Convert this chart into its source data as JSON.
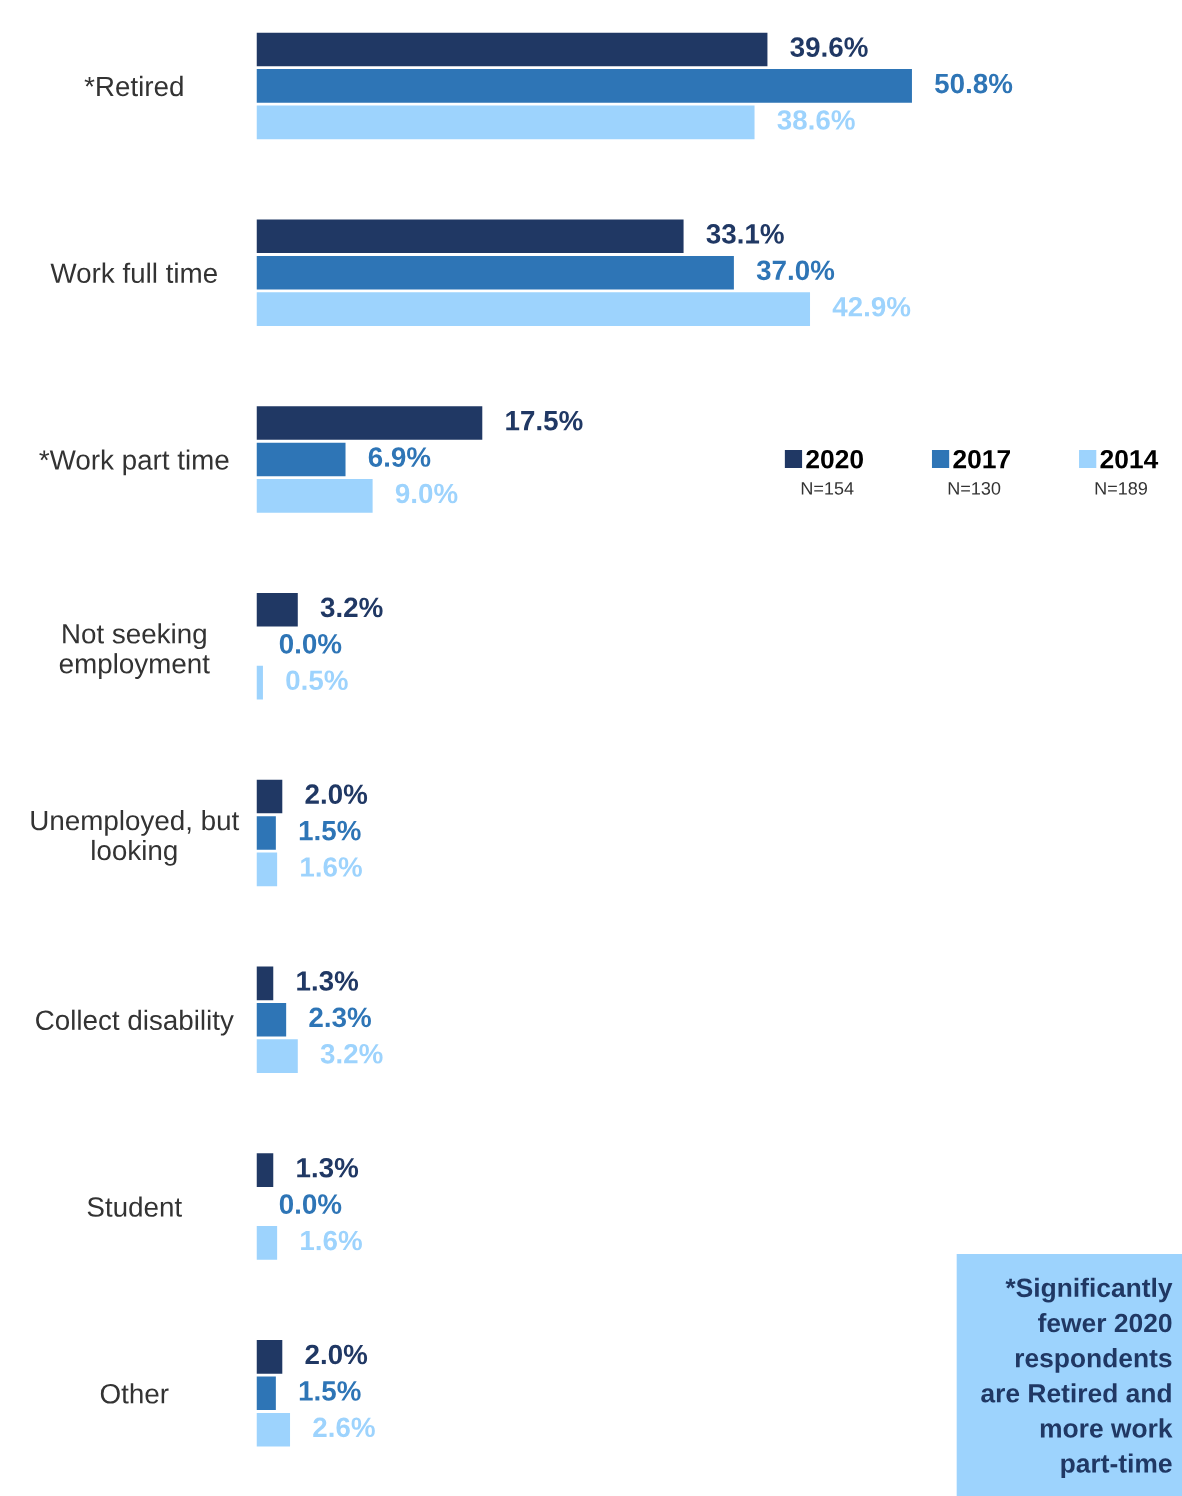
{
  "chart_data": {
    "type": "bar",
    "orientation": "horizontal",
    "data_labels": true,
    "legend": "right",
    "grid": false,
    "tick_labels": "y",
    "categories": [
      "*Retired",
      "Work full time",
      "*Work part time",
      "Not seeking\nemployment",
      "Unemployed, but\nlooking",
      "Collect disability",
      "Student",
      "Other"
    ],
    "series": [
      {
        "name": "2020",
        "color": "#203864",
        "values": [
          39.6,
          33.1,
          17.5,
          3.2,
          2.0,
          1.3,
          1.3,
          2.0
        ],
        "value_labels": [
          "39.6%",
          "33.1%",
          "17.5%",
          "3.2%",
          "2.0%",
          "1.3%",
          "1.3%",
          "2.0%"
        ]
      },
      {
        "name": "2017",
        "color": "#2e75b6",
        "values": [
          50.8,
          37.0,
          6.9,
          0.0,
          1.5,
          2.3,
          0.0,
          1.5
        ],
        "value_labels": [
          "50.8%",
          "37.0%",
          "6.9%",
          "0.0%",
          "1.5%",
          "2.3%",
          "0.0%",
          "1.5%"
        ]
      },
      {
        "name": "2014",
        "color": "#9dd3fd",
        "values": [
          38.6,
          42.9,
          9.0,
          0.5,
          1.6,
          3.2,
          1.6,
          2.6
        ],
        "value_labels": [
          "38.6%",
          "42.9%",
          "9.0%",
          "0.5%",
          "1.6%",
          "3.2%",
          "1.6%",
          "2.6%"
        ]
      }
    ],
    "annotations": [
      "N=154",
      "N=130",
      "N=189",
      "*Significantly\nfewer 2020\nrespondents\nare Retired and\nmore work\npart-time"
    ]
  }
}
